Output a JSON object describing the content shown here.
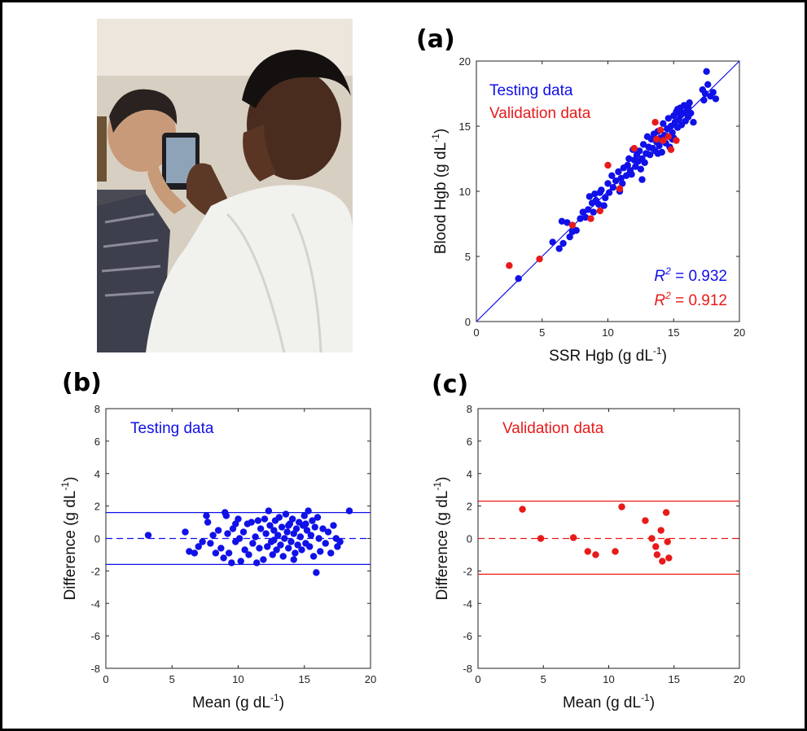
{
  "panel_labels": {
    "a": "(a)",
    "b": "(b)",
    "c": "(c)"
  },
  "colors": {
    "testing": "#1010e8",
    "validation": "#e81a1a",
    "axis": "#222222"
  },
  "chart_data": [
    {
      "id": "a",
      "type": "scatter",
      "xlabel": "SSR Hgb (g dL",
      "xlabel_sup": "-1",
      "xlabel_end": ")",
      "ylabel": "Blood Hgb (g dL",
      "ylabel_sup": "-1",
      "ylabel_end": ")",
      "xlim": [
        0,
        20
      ],
      "ylim": [
        0,
        20
      ],
      "xticks": [
        0,
        5,
        10,
        15,
        20
      ],
      "yticks": [
        0,
        5,
        10,
        15,
        20
      ],
      "identity_line": true,
      "legend": [
        "Testing data",
        "Validation data"
      ],
      "annotations": [
        {
          "prefix": "R",
          "sup": "2",
          "text": " = 0.932",
          "series": "testing"
        },
        {
          "prefix": "R",
          "sup": "2",
          "text": " = 0.912",
          "series": "validation"
        }
      ],
      "series": [
        {
          "name": "Testing data",
          "color_key": "testing",
          "points": [
            [
              3.2,
              3.3
            ],
            [
              5.8,
              6.1
            ],
            [
              6.3,
              5.6
            ],
            [
              6.6,
              6.0
            ],
            [
              6.5,
              7.7
            ],
            [
              6.9,
              7.6
            ],
            [
              7.1,
              6.5
            ],
            [
              7.3,
              6.9
            ],
            [
              7.6,
              7.0
            ],
            [
              7.9,
              7.9
            ],
            [
              8.1,
              8.4
            ],
            [
              8.3,
              8.0
            ],
            [
              8.5,
              8.6
            ],
            [
              8.6,
              9.6
            ],
            [
              8.8,
              9.1
            ],
            [
              8.9,
              8.4
            ],
            [
              9.0,
              9.8
            ],
            [
              9.1,
              9.3
            ],
            [
              9.3,
              9.0
            ],
            [
              9.4,
              9.9
            ],
            [
              9.5,
              10.1
            ],
            [
              9.7,
              8.9
            ],
            [
              9.8,
              9.5
            ],
            [
              10.0,
              10.6
            ],
            [
              10.1,
              9.9
            ],
            [
              10.3,
              11.2
            ],
            [
              10.4,
              10.3
            ],
            [
              10.6,
              10.8
            ],
            [
              10.8,
              11.5
            ],
            [
              10.9,
              10.0
            ],
            [
              11.0,
              11.0
            ],
            [
              11.1,
              10.6
            ],
            [
              11.2,
              11.8
            ],
            [
              11.4,
              11.2
            ],
            [
              11.5,
              12.0
            ],
            [
              11.6,
              12.5
            ],
            [
              11.7,
              11.6
            ],
            [
              11.9,
              13.2
            ],
            [
              12.0,
              12.4
            ],
            [
              12.1,
              11.9
            ],
            [
              12.2,
              12.8
            ],
            [
              12.3,
              12.3
            ],
            [
              12.4,
              13.1
            ],
            [
              12.5,
              11.7
            ],
            [
              12.6,
              12.5
            ],
            [
              12.7,
              13.6
            ],
            [
              12.8,
              12.2
            ],
            [
              12.9,
              12.9
            ],
            [
              13.0,
              14.2
            ],
            [
              13.1,
              13.4
            ],
            [
              13.2,
              12.8
            ],
            [
              13.3,
              14.0
            ],
            [
              13.4,
              13.3
            ],
            [
              13.5,
              14.4
            ],
            [
              13.6,
              13.1
            ],
            [
              13.7,
              13.8
            ],
            [
              13.8,
              14.6
            ],
            [
              13.9,
              13.5
            ],
            [
              14.0,
              14.1
            ],
            [
              14.1,
              13.0
            ],
            [
              14.2,
              15.2
            ],
            [
              14.3,
              14.3
            ],
            [
              14.4,
              13.7
            ],
            [
              14.5,
              14.8
            ],
            [
              14.6,
              15.6
            ],
            [
              14.7,
              14.2
            ],
            [
              14.8,
              15.0
            ],
            [
              14.9,
              14.5
            ],
            [
              15.0,
              15.8
            ],
            [
              15.1,
              15.3
            ],
            [
              15.2,
              16.1
            ],
            [
              15.3,
              14.9
            ],
            [
              15.4,
              15.5
            ],
            [
              15.5,
              16.4
            ],
            [
              15.6,
              15.1
            ],
            [
              15.7,
              16.0
            ],
            [
              15.8,
              16.6
            ],
            [
              15.9,
              15.4
            ],
            [
              16.0,
              16.2
            ],
            [
              16.1,
              15.7
            ],
            [
              16.2,
              16.8
            ],
            [
              16.3,
              16.0
            ],
            [
              15.0,
              14.1
            ],
            [
              14.7,
              13.4
            ],
            [
              15.5,
              15.9
            ],
            [
              16.5,
              15.3
            ],
            [
              17.2,
              17.8
            ],
            [
              17.3,
              17.0
            ],
            [
              17.4,
              17.5
            ],
            [
              17.5,
              19.2
            ],
            [
              17.6,
              18.2
            ],
            [
              17.8,
              17.3
            ],
            [
              18.0,
              17.6
            ],
            [
              18.2,
              17.1
            ],
            [
              12.6,
              10.9
            ],
            [
              11.8,
              11.3
            ],
            [
              13.8,
              12.9
            ],
            [
              14.9,
              14.0
            ],
            [
              16.1,
              16.5
            ],
            [
              15.3,
              16.3
            ]
          ]
        },
        {
          "name": "Validation data",
          "color_key": "validation",
          "points": [
            [
              2.5,
              4.3
            ],
            [
              4.8,
              4.8
            ],
            [
              7.3,
              7.4
            ],
            [
              8.7,
              7.9
            ],
            [
              9.4,
              8.5
            ],
            [
              10.0,
              12.0
            ],
            [
              10.9,
              10.2
            ],
            [
              12.0,
              13.3
            ],
            [
              13.6,
              15.3
            ],
            [
              13.7,
              14.0
            ],
            [
              14.0,
              14.7
            ],
            [
              14.2,
              13.9
            ],
            [
              14.6,
              14.2
            ],
            [
              14.8,
              13.2
            ],
            [
              15.2,
              13.9
            ]
          ]
        }
      ]
    },
    {
      "id": "b",
      "type": "scatter",
      "xlabel": "Mean (g dL",
      "xlabel_sup": "-1",
      "xlabel_end": ")",
      "ylabel": "Difference (g dL",
      "ylabel_sup": "-1",
      "ylabel_end": ")",
      "xlim": [
        0,
        20
      ],
      "ylim": [
        -8,
        8
      ],
      "xticks": [
        0,
        5,
        10,
        15,
        20
      ],
      "yticks": [
        -8,
        -6,
        -4,
        -2,
        0,
        2,
        4,
        6,
        8
      ],
      "limits": {
        "upper": 1.6,
        "mean": 0,
        "lower": -1.6
      },
      "legend": [
        "Testing data"
      ],
      "series": [
        {
          "name": "Testing data",
          "color_key": "testing",
          "points": [
            [
              3.2,
              0.2
            ],
            [
              6.0,
              0.4
            ],
            [
              6.3,
              -0.8
            ],
            [
              6.7,
              -0.9
            ],
            [
              7.0,
              -0.5
            ],
            [
              7.3,
              -0.2
            ],
            [
              7.6,
              1.4
            ],
            [
              7.7,
              1.0
            ],
            [
              7.9,
              -0.3
            ],
            [
              8.1,
              0.2
            ],
            [
              8.3,
              -0.9
            ],
            [
              8.5,
              0.5
            ],
            [
              8.7,
              -0.6
            ],
            [
              8.9,
              -1.2
            ],
            [
              9.0,
              1.6
            ],
            [
              9.1,
              1.4
            ],
            [
              9.2,
              0.3
            ],
            [
              9.3,
              -0.9
            ],
            [
              9.5,
              -1.5
            ],
            [
              9.6,
              0.6
            ],
            [
              9.8,
              -0.2
            ],
            [
              10.0,
              1.2
            ],
            [
              10.1,
              0.0
            ],
            [
              10.2,
              -1.4
            ],
            [
              10.4,
              0.4
            ],
            [
              10.5,
              -0.7
            ],
            [
              10.7,
              0.9
            ],
            [
              10.8,
              -1.0
            ],
            [
              11.0,
              1.0
            ],
            [
              11.1,
              -0.3
            ],
            [
              11.3,
              0.1
            ],
            [
              11.4,
              -1.5
            ],
            [
              11.6,
              -0.6
            ],
            [
              11.7,
              0.6
            ],
            [
              11.9,
              -1.3
            ],
            [
              12.0,
              1.2
            ],
            [
              12.1,
              0.3
            ],
            [
              12.2,
              -0.5
            ],
            [
              12.3,
              1.7
            ],
            [
              12.4,
              0.8
            ],
            [
              12.5,
              -0.2
            ],
            [
              12.6,
              -1.0
            ],
            [
              12.7,
              0.5
            ],
            [
              12.8,
              1.1
            ],
            [
              12.9,
              -0.7
            ],
            [
              13.0,
              0.2
            ],
            [
              13.1,
              1.3
            ],
            [
              13.2,
              -0.4
            ],
            [
              13.3,
              0.7
            ],
            [
              13.4,
              -1.1
            ],
            [
              13.5,
              0.0
            ],
            [
              13.6,
              1.5
            ],
            [
              13.7,
              0.4
            ],
            [
              13.8,
              -0.6
            ],
            [
              13.9,
              0.9
            ],
            [
              14.0,
              -0.2
            ],
            [
              14.1,
              1.2
            ],
            [
              14.2,
              0.3
            ],
            [
              14.3,
              -0.9
            ],
            [
              14.4,
              0.6
            ],
            [
              14.5,
              -0.4
            ],
            [
              14.6,
              1.0
            ],
            [
              14.7,
              0.1
            ],
            [
              14.8,
              -0.7
            ],
            [
              14.9,
              0.8
            ],
            [
              15.0,
              1.4
            ],
            [
              15.1,
              -0.3
            ],
            [
              15.2,
              0.5
            ],
            [
              15.3,
              1.7
            ],
            [
              15.4,
              -0.5
            ],
            [
              15.5,
              0.2
            ],
            [
              15.6,
              1.1
            ],
            [
              15.7,
              -1.1
            ],
            [
              15.8,
              0.7
            ],
            [
              15.9,
              -2.1
            ],
            [
              16.0,
              1.3
            ],
            [
              16.1,
              0.0
            ],
            [
              16.2,
              -0.8
            ],
            [
              16.4,
              0.6
            ],
            [
              16.6,
              -0.3
            ],
            [
              16.8,
              0.4
            ],
            [
              17.0,
              -0.9
            ],
            [
              17.2,
              0.8
            ],
            [
              17.4,
              0.0
            ],
            [
              17.5,
              -0.5
            ],
            [
              17.7,
              -0.2
            ],
            [
              18.4,
              1.7
            ],
            [
              14.2,
              -1.3
            ],
            [
              12.7,
              -0.1
            ],
            [
              11.5,
              1.1
            ],
            [
              9.8,
              0.9
            ],
            [
              13.8,
              0.8
            ],
            [
              15.1,
              0.9
            ]
          ]
        }
      ]
    },
    {
      "id": "c",
      "type": "scatter",
      "xlabel": "Mean (g dL",
      "xlabel_sup": "-1",
      "xlabel_end": ")",
      "ylabel": "Difference (g dL",
      "ylabel_sup": "-1",
      "ylabel_end": ")",
      "xlim": [
        0,
        20
      ],
      "ylim": [
        -8,
        8
      ],
      "xticks": [
        0,
        5,
        10,
        15,
        20
      ],
      "yticks": [
        -8,
        -6,
        -4,
        -2,
        0,
        2,
        4,
        6,
        8
      ],
      "limits": {
        "upper": 2.3,
        "mean": 0,
        "lower": -2.2
      },
      "legend": [
        "Validation data"
      ],
      "series": [
        {
          "name": "Validation data",
          "color_key": "validation",
          "points": [
            [
              3.4,
              1.8
            ],
            [
              4.8,
              0.0
            ],
            [
              7.3,
              0.05
            ],
            [
              8.4,
              -0.8
            ],
            [
              9.0,
              -1.0
            ],
            [
              10.5,
              -0.8
            ],
            [
              11.0,
              1.95
            ],
            [
              12.8,
              1.1
            ],
            [
              13.3,
              0.0
            ],
            [
              13.6,
              -0.5
            ],
            [
              13.7,
              -1.0
            ],
            [
              14.0,
              0.5
            ],
            [
              14.1,
              -1.4
            ],
            [
              14.4,
              1.6
            ],
            [
              14.5,
              -0.2
            ],
            [
              14.6,
              -1.2
            ]
          ]
        }
      ]
    }
  ]
}
